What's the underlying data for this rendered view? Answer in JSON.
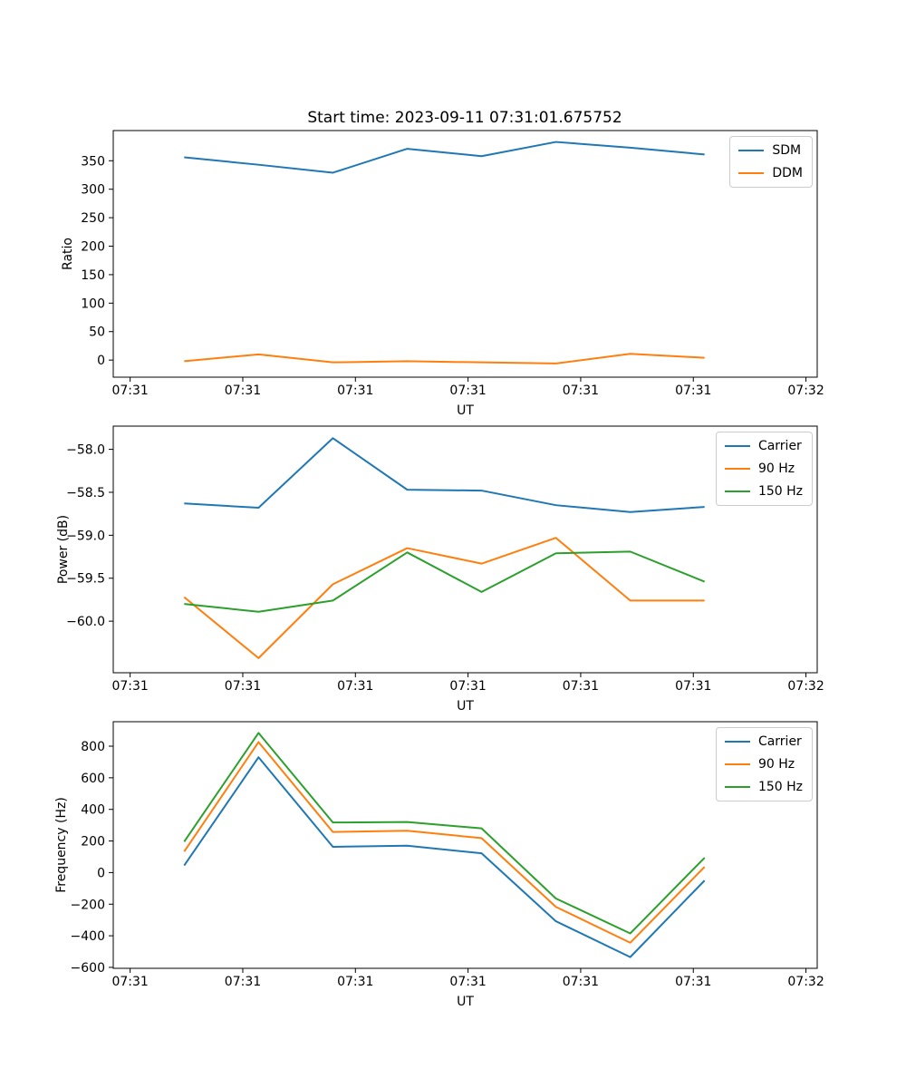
{
  "title": "Start time: 2023-09-11 07:31:01.675752",
  "palette": {
    "blue": "#1f77b4",
    "orange": "#ff7f0e",
    "green": "#2ca02c"
  },
  "chart_data": [
    {
      "type": "line",
      "title": "",
      "xlabel": "UT",
      "ylabel": "Ratio",
      "x_seconds_after_0731": [
        4.8,
        11.4,
        18.0,
        24.6,
        31.2,
        37.8,
        44.4,
        51.0
      ],
      "xlim_seconds": [
        -1.5,
        61.0
      ],
      "ylim": [
        -30,
        403
      ],
      "xtick_seconds": [
        0,
        10,
        20,
        30,
        40,
        50,
        60
      ],
      "xtick_labels": [
        "07:31",
        "07:31",
        "07:31",
        "07:31",
        "07:31",
        "07:31",
        "07:32"
      ],
      "ytick_values": [
        0,
        50,
        100,
        150,
        200,
        250,
        300,
        350
      ],
      "ytick_labels": [
        "0",
        "50",
        "100",
        "150",
        "200",
        "250",
        "300",
        "350"
      ],
      "grid": false,
      "legend_position": "upper right",
      "series": [
        {
          "name": "SDM",
          "color": "#1f77b4",
          "values": [
            356,
            343,
            329,
            371,
            358,
            383,
            373,
            361
          ]
        },
        {
          "name": "DDM",
          "color": "#ff7f0e",
          "values": [
            -2,
            10,
            -4,
            -2,
            -4,
            -6,
            11,
            4
          ]
        }
      ]
    },
    {
      "type": "line",
      "title": "",
      "xlabel": "UT",
      "ylabel": "Power (dB)",
      "x_seconds_after_0731": [
        4.8,
        11.4,
        18.0,
        24.6,
        31.2,
        37.8,
        44.4,
        51.0
      ],
      "xlim_seconds": [
        -1.5,
        61.0
      ],
      "ylim": [
        -60.6,
        -57.73
      ],
      "xtick_seconds": [
        0,
        10,
        20,
        30,
        40,
        50,
        60
      ],
      "xtick_labels": [
        "07:31",
        "07:31",
        "07:31",
        "07:31",
        "07:31",
        "07:31",
        "07:32"
      ],
      "ytick_values": [
        -58.0,
        -58.5,
        -59.0,
        -59.5,
        -60.0
      ],
      "ytick_labels": [
        "−58.0",
        "−58.5",
        "−59.0",
        "−59.5",
        "−60.0"
      ],
      "grid": false,
      "legend_position": "upper right",
      "series": [
        {
          "name": "Carrier",
          "color": "#1f77b4",
          "values": [
            -58.63,
            -58.68,
            -57.87,
            -58.47,
            -58.48,
            -58.65,
            -58.73,
            -58.67
          ]
        },
        {
          "name": "90 Hz",
          "color": "#ff7f0e",
          "values": [
            -59.72,
            -60.43,
            -59.57,
            -59.15,
            -59.33,
            -59.03,
            -59.76,
            -59.76
          ]
        },
        {
          "name": "150 Hz",
          "color": "#2ca02c",
          "values": [
            -59.8,
            -59.89,
            -59.76,
            -59.2,
            -59.66,
            -59.21,
            -59.19,
            -59.54
          ]
        }
      ]
    },
    {
      "type": "line",
      "title": "",
      "xlabel": "UT",
      "ylabel": "Frequency (Hz)",
      "x_seconds_after_0731": [
        4.8,
        11.4,
        18.0,
        24.6,
        31.2,
        37.8,
        44.4,
        51.0
      ],
      "xlim_seconds": [
        -1.5,
        61.0
      ],
      "ylim": [
        -606,
        955
      ],
      "xtick_seconds": [
        0,
        10,
        20,
        30,
        40,
        50,
        60
      ],
      "xtick_labels": [
        "07:31",
        "07:31",
        "07:31",
        "07:31",
        "07:31",
        "07:31",
        "07:32"
      ],
      "ytick_values": [
        -600,
        -400,
        -200,
        0,
        200,
        400,
        600,
        800
      ],
      "ytick_labels": [
        "−600",
        "−400",
        "−200",
        "0",
        "200",
        "400",
        "600",
        "800"
      ],
      "grid": false,
      "legend_position": "upper right",
      "series": [
        {
          "name": "Carrier",
          "color": "#1f77b4",
          "values": [
            45,
            730,
            163,
            170,
            122,
            -308,
            -535,
            -50
          ]
        },
        {
          "name": "90 Hz",
          "color": "#ff7f0e",
          "values": [
            133,
            826,
            257,
            265,
            218,
            -217,
            -444,
            36
          ]
        },
        {
          "name": "150 Hz",
          "color": "#2ca02c",
          "values": [
            196,
            884,
            317,
            320,
            280,
            -164,
            -385,
            94
          ]
        }
      ]
    }
  ]
}
